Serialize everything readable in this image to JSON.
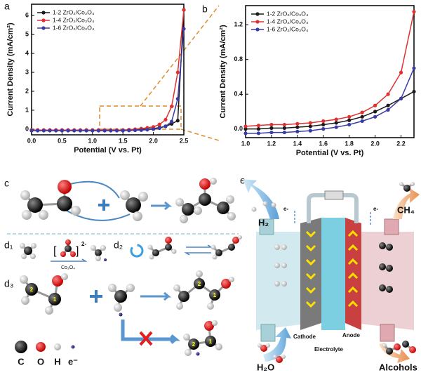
{
  "chart_data": [
    {
      "type": "line",
      "xlabel": "Potential (V vs. Pt)",
      "ylabel": "Current Density (mA/cm²)",
      "x": [
        0,
        0.1,
        0.2,
        0.3,
        0.4,
        0.5,
        0.6,
        0.7,
        0.8,
        0.9,
        1.0,
        1.1,
        1.2,
        1.3,
        1.4,
        1.5,
        1.6,
        1.7,
        1.8,
        1.9,
        2.0,
        2.1,
        2.2,
        2.3,
        2.4,
        2.5
      ],
      "series": [
        {
          "name": "1-2 ZrO₂/Co₃O₄",
          "color": "#1a1a1a",
          "values": [
            -0.05,
            -0.05,
            -0.05,
            -0.05,
            -0.05,
            -0.05,
            -0.05,
            -0.05,
            -0.05,
            -0.05,
            -0.05,
            -0.05,
            -0.05,
            -0.05,
            -0.05,
            -0.05,
            -0.04,
            -0.03,
            -0.02,
            0,
            0.03,
            0.08,
            0.15,
            0.28,
            0.45,
            6.3
          ]
        },
        {
          "name": "1-4 ZrO₂/Co₃O₄",
          "color": "#e0302f",
          "values": [
            -0.05,
            -0.05,
            -0.05,
            -0.05,
            -0.05,
            -0.05,
            -0.05,
            -0.05,
            -0.05,
            -0.05,
            -0.05,
            -0.05,
            -0.05,
            -0.05,
            -0.05,
            -0.05,
            -0.03,
            0,
            0.03,
            0.07,
            0.12,
            0.25,
            0.5,
            1.2,
            3.0,
            6.3
          ]
        },
        {
          "name": "1-6 ZrO₂/Co₃O₄",
          "color": "#3b3ba6",
          "values": [
            -0.08,
            -0.08,
            -0.08,
            -0.08,
            -0.08,
            -0.08,
            -0.08,
            -0.08,
            -0.08,
            -0.08,
            -0.08,
            -0.08,
            -0.08,
            -0.08,
            -0.08,
            -0.08,
            -0.07,
            -0.06,
            -0.05,
            -0.03,
            0,
            0.05,
            0.15,
            0.4,
            1.6,
            5.3
          ]
        }
      ],
      "xlim": [
        0,
        2.5
      ],
      "xticks": [
        {
          "value": 0,
          "label": "0.0"
        },
        0.5,
        {
          "value": 1,
          "label": "1.0"
        },
        1.5,
        {
          "value": 2,
          "label": "2.0"
        },
        2.5
      ],
      "ylim": [
        -0.3,
        6.6
      ],
      "yticks": [
        0,
        1,
        2,
        3,
        4,
        5,
        6
      ],
      "grid": false,
      "legend": "upper-left"
    },
    {
      "type": "line",
      "xlabel": "Potential (V vs. Pt)",
      "ylabel": "Current Density (mA/cm²)",
      "x": [
        1.0,
        1.1,
        1.2,
        1.3,
        1.4,
        1.5,
        1.6,
        1.7,
        1.8,
        1.9,
        2.0,
        2.1,
        2.2,
        2.3
      ],
      "series": [
        {
          "name": "1-2 ZrO₂/Co₃O₄",
          "color": "#1a1a1a",
          "values": [
            0,
            0,
            0.01,
            0.01,
            0.02,
            0.03,
            0.05,
            0.07,
            0.1,
            0.14,
            0.2,
            0.27,
            0.35,
            0.43
          ]
        },
        {
          "name": "1-4 ZrO₂/Co₃O₄",
          "color": "#e0302f",
          "values": [
            0.03,
            0.04,
            0.05,
            0.05,
            0.06,
            0.07,
            0.09,
            0.11,
            0.14,
            0.19,
            0.27,
            0.4,
            0.65,
            1.35
          ]
        },
        {
          "name": "1-6 ZrO₂/Co₃O₄",
          "color": "#3b3ba6",
          "values": [
            -0.05,
            -0.05,
            -0.04,
            -0.04,
            -0.03,
            -0.02,
            0,
            0.02,
            0.05,
            0.09,
            0.14,
            0.22,
            0.35,
            0.7
          ]
        }
      ],
      "xlim": [
        1.0,
        2.3
      ],
      "xticks": [
        {
          "value": 1,
          "label": "1.0"
        },
        1.2,
        1.4,
        1.6,
        1.8,
        {
          "value": 2,
          "label": "2.0"
        },
        2.2
      ],
      "ylim": [
        -0.1,
        1.42
      ],
      "yticks": [
        {
          "value": 0,
          "label": "0.0"
        },
        0.4,
        0.8,
        1.2
      ],
      "grid": false,
      "legend": "upper-left"
    }
  ],
  "panel_labels": {
    "a": "a",
    "b": "b",
    "c": "c",
    "d1": "d₁",
    "d2": "d₂",
    "d3": "d₃",
    "e": "e"
  },
  "mechanism": {
    "charge": "2-",
    "catalyst": "Co₃O₄",
    "atom_numbers": [
      "2",
      "1",
      "2",
      "1",
      "2",
      "1"
    ],
    "legend": [
      "C",
      "O",
      "H",
      "e⁻"
    ]
  },
  "cell": {
    "h2": "H₂",
    "ch4": "CH₄",
    "electron_left": "e-",
    "electron_right": "e-",
    "cathode": "Cathode",
    "anode": "Anode",
    "electrolyte": "Electrolyte",
    "h2o": "H₂O",
    "alcohols": "Alcohols"
  }
}
